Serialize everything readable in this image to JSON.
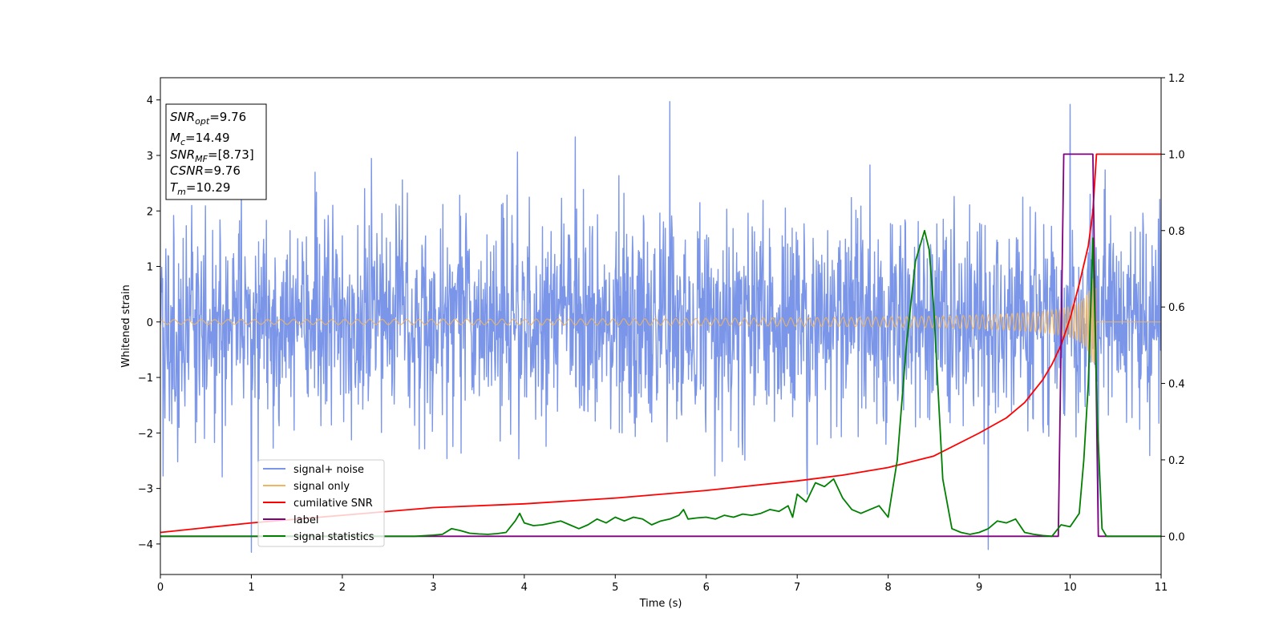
{
  "chart_data": {
    "type": "line",
    "title": "",
    "xlabel": "Time (s)",
    "ylabel": "Whitened strain",
    "y2label": "",
    "xlim": [
      0,
      11
    ],
    "ylim": [
      -4.55,
      4.4
    ],
    "y2lim": [
      -0.1,
      1.2
    ],
    "xticks": [
      "0",
      "1",
      "2",
      "3",
      "4",
      "5",
      "6",
      "7",
      "8",
      "9",
      "10",
      "11"
    ],
    "yticks": [
      "4",
      "3",
      "2",
      "1",
      "0",
      "−1",
      "−2",
      "−3",
      "−4"
    ],
    "y2ticks": [
      "1.2",
      "1.0",
      "0.8",
      "0.6",
      "0.4",
      "0.2",
      "0.0"
    ],
    "grid": false,
    "legend_position": "lower-left",
    "annotation": {
      "lines": [
        {
          "var": "SNR",
          "sub": "opt",
          "value": "=9.76"
        },
        {
          "var": "M",
          "sub": "c",
          "value": "=14.49"
        },
        {
          "var": "SNR",
          "sub": "MF",
          "value": "=[8.73]"
        },
        {
          "var": "CSNR",
          "sub": "",
          "value": "=9.76"
        },
        {
          "var": "T",
          "sub": "m",
          "value": "=10.29"
        }
      ]
    },
    "series": [
      {
        "name": "signal+ noise",
        "axis": "left",
        "color": "#7b96e8",
        "kind": "noise",
        "sigma": 0.95,
        "sample_interval": 0.005,
        "xrange": [
          0,
          11
        ],
        "notable_points": [
          [
            1.0,
            -4.15
          ],
          [
            5.6,
            3.97
          ],
          [
            10.0,
            3.92
          ],
          [
            9.1,
            -4.1
          ]
        ]
      },
      {
        "name": "signal only",
        "axis": "left",
        "color": "#f0b561",
        "kind": "chirp",
        "start_amplitude": 0.04,
        "peak_amplitude": 0.8,
        "peak_time": 10.29,
        "end_time": 10.29,
        "xrange": [
          0,
          11
        ]
      },
      {
        "name": "cumilative SNR",
        "axis": "right",
        "color": "#ff0000",
        "x": [
          0,
          1,
          2,
          3,
          4,
          5,
          6,
          7,
          7.5,
          8,
          8.5,
          9,
          9.3,
          9.5,
          9.7,
          9.8,
          9.9,
          10.0,
          10.1,
          10.2,
          10.25,
          10.29,
          11
        ],
        "y": [
          0.01,
          0.035,
          0.055,
          0.075,
          0.085,
          0.1,
          0.12,
          0.145,
          0.16,
          0.18,
          0.21,
          0.27,
          0.31,
          0.35,
          0.41,
          0.45,
          0.5,
          0.57,
          0.66,
          0.76,
          0.85,
          1.0,
          1.0
        ]
      },
      {
        "name": "label",
        "axis": "right",
        "color": "#800080",
        "x": [
          0,
          9.87,
          9.93,
          10.25,
          10.31,
          11
        ],
        "y": [
          0.0,
          0.0,
          1.0,
          1.0,
          0.0,
          0.0
        ]
      },
      {
        "name": "signal statistics",
        "axis": "right",
        "color": "#008000",
        "x": [
          0,
          2.8,
          3.0,
          3.1,
          3.2,
          3.3,
          3.4,
          3.5,
          3.6,
          3.7,
          3.8,
          3.9,
          3.95,
          4.0,
          4.1,
          4.2,
          4.3,
          4.4,
          4.5,
          4.6,
          4.7,
          4.8,
          4.9,
          5.0,
          5.1,
          5.2,
          5.3,
          5.4,
          5.5,
          5.6,
          5.7,
          5.75,
          5.8,
          5.9,
          6.0,
          6.1,
          6.2,
          6.3,
          6.4,
          6.5,
          6.6,
          6.7,
          6.8,
          6.9,
          6.95,
          7.0,
          7.1,
          7.2,
          7.3,
          7.4,
          7.5,
          7.6,
          7.7,
          7.8,
          7.9,
          8.0,
          8.1,
          8.2,
          8.3,
          8.4,
          8.45,
          8.5,
          8.6,
          8.7,
          8.8,
          8.9,
          9.0,
          9.1,
          9.2,
          9.3,
          9.4,
          9.5,
          9.6,
          9.7,
          9.8,
          9.9,
          10.0,
          10.1,
          10.15,
          10.2,
          10.25,
          10.3,
          10.35,
          10.4,
          11
        ],
        "y": [
          0.0,
          0.0,
          0.003,
          0.005,
          0.02,
          0.015,
          0.008,
          0.006,
          0.005,
          0.007,
          0.01,
          0.04,
          0.06,
          0.035,
          0.028,
          0.03,
          0.035,
          0.04,
          0.03,
          0.02,
          0.03,
          0.045,
          0.035,
          0.05,
          0.04,
          0.05,
          0.045,
          0.03,
          0.04,
          0.045,
          0.055,
          0.07,
          0.045,
          0.048,
          0.05,
          0.045,
          0.055,
          0.05,
          0.058,
          0.055,
          0.06,
          0.07,
          0.065,
          0.08,
          0.05,
          0.11,
          0.09,
          0.14,
          0.13,
          0.15,
          0.1,
          0.07,
          0.06,
          0.07,
          0.08,
          0.05,
          0.2,
          0.5,
          0.72,
          0.8,
          0.75,
          0.6,
          0.15,
          0.02,
          0.01,
          0.005,
          0.01,
          0.02,
          0.04,
          0.035,
          0.045,
          0.01,
          0.005,
          0.002,
          0.0,
          0.03,
          0.025,
          0.06,
          0.2,
          0.4,
          0.78,
          0.3,
          0.02,
          0.0,
          0.0
        ]
      }
    ]
  }
}
